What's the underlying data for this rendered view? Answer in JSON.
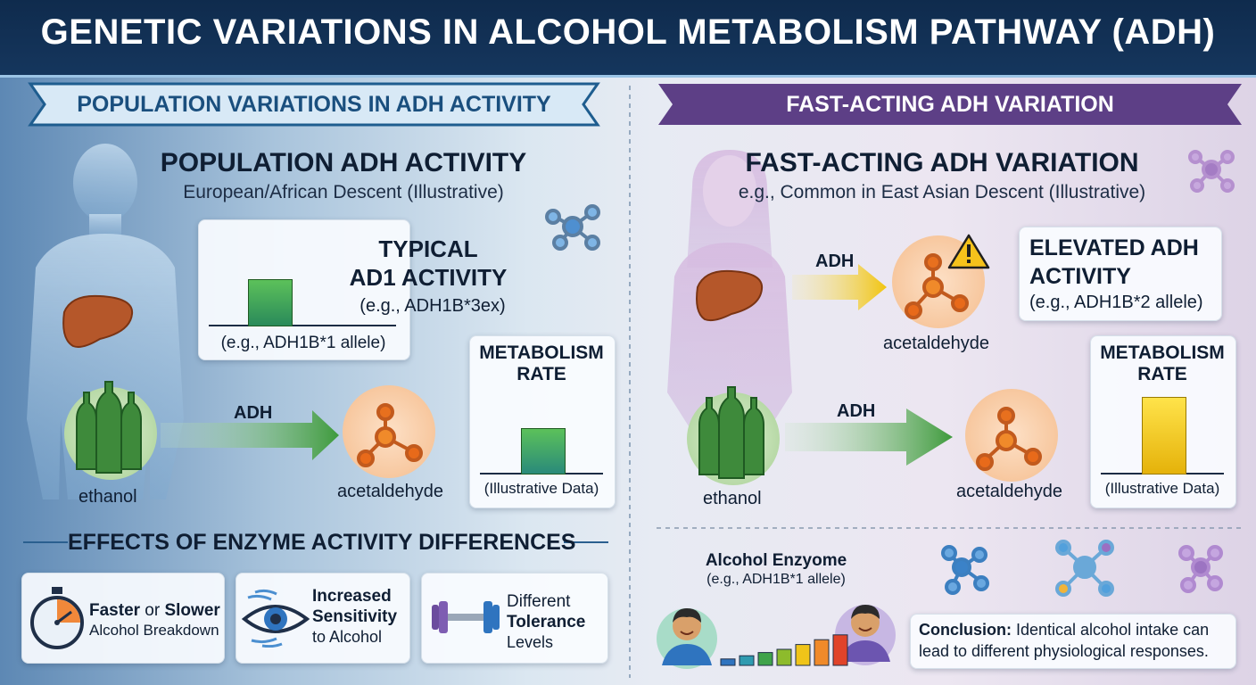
{
  "title": "GENETIC VARIATIONS IN ALCOHOL METABOLISM PATHWAY (ADH)",
  "left": {
    "ribbon": "POPULATION VARIATIONS IN ADH ACTIVITY",
    "heading": "POPULATION ADH ACTIVITY",
    "subheading": "European/African Descent (Illustrative)",
    "typical_card": {
      "title_line1": "TYPICAL",
      "title_line2": "AD1 ACTIVITY",
      "example": "(e.g., ADH1B*3ex)",
      "allele": "(e.g., ADH1B*1 allele)"
    },
    "ethanol": "ethanol",
    "arrow": "ADH",
    "product": "acetaldehyde",
    "metabolism_card": {
      "title_line1": "METABOLISM",
      "title_line2": "RATE",
      "footer": "(Illustrative Data)",
      "bar_level": 0.5
    },
    "effects_heading": "EFFECTS OF ENZYME ACTIVITY DIFFERENCES",
    "effects": [
      {
        "icon": "stopwatch-icon",
        "line1_a": "Faster",
        "line1_b": " or ",
        "line1_c": "Slower",
        "line2": "Alcohol Breakdown"
      },
      {
        "icon": "eye-icon",
        "line1": "Increased",
        "line2": "Sensitivity",
        "line3": "to Alcohol"
      },
      {
        "icon": "dumbbell-icon",
        "line1": "Different",
        "line2": "Tolerance",
        "line3": "Levels"
      }
    ]
  },
  "right": {
    "ribbon": "FAST-ACTING ADH VARIATION",
    "heading": "FAST-ACTING ADH VARIATION",
    "subheading": "e.g., Common in East Asian Descent (Illustrative)",
    "liver_arrow": "ADH",
    "acetaldehyde_top": "acetaldehyde",
    "elevated_card": {
      "title_line1": "ELEVATED ADH",
      "title_line2": "ACTIVITY",
      "example": "(e.g., ADH1B*2 allele)"
    },
    "metabolism_card": {
      "title_line1": "METABOLISM",
      "title_line2": "RATE",
      "footer": "(Illustrative Data)",
      "bar_level": 0.85
    },
    "ethanol": "ethanol",
    "arrow": "ADH",
    "product": "acetaldehyde",
    "enzyme_title": "Alcohol Enzyome",
    "enzyme_example": "(e.g., ADH1B*1 allele)",
    "response_bars": [
      0.2,
      0.3,
      0.4,
      0.5,
      0.65,
      0.8,
      0.95
    ],
    "conclusion_label": "Conclusion:",
    "conclusion_text1": " Identical alcohol intake can",
    "conclusion_text2": "lead to different physiological responses."
  },
  "colors": {
    "navy": "#0f2b4d",
    "green": "#3f9b3d",
    "yellow": "#f1c40f",
    "purple": "#5d3f86",
    "orange": "#f0883a"
  }
}
